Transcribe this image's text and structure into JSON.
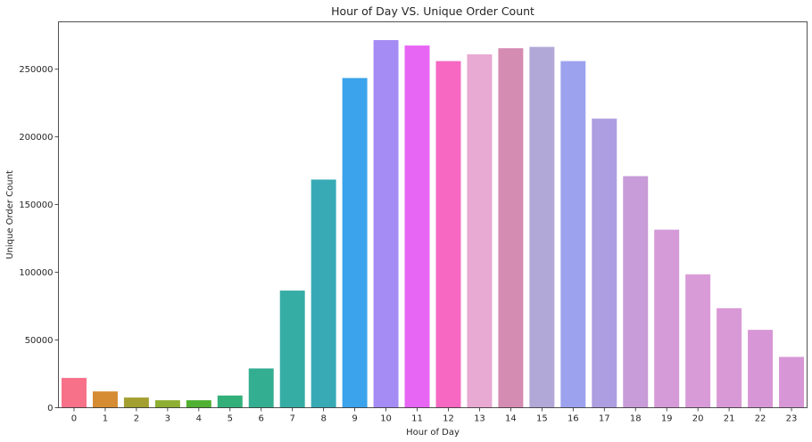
{
  "chart_data": {
    "type": "bar",
    "title": "Hour of Day VS. Unique Order Count",
    "xlabel": "Hour of Day",
    "ylabel": "Unique Order Count",
    "categories": [
      "0",
      "1",
      "2",
      "3",
      "4",
      "5",
      "6",
      "7",
      "8",
      "9",
      "10",
      "11",
      "12",
      "13",
      "14",
      "15",
      "16",
      "17",
      "18",
      "19",
      "20",
      "21",
      "22",
      "23"
    ],
    "values": [
      22000,
      12000,
      7500,
      5500,
      5500,
      9000,
      29000,
      86500,
      168500,
      243500,
      271500,
      267500,
      256000,
      261000,
      265500,
      266500,
      256000,
      213500,
      171000,
      131500,
      98500,
      73500,
      57500,
      37500
    ],
    "colors": [
      "#f77189",
      "#d58c32",
      "#a39f31",
      "#8eaf31",
      "#4fb031",
      "#33b07a",
      "#34ae91",
      "#36ada4",
      "#38aab6",
      "#3ba3ec",
      "#a48cf4",
      "#e866f4",
      "#f668c2",
      "#e8a9d3",
      "#d58cb2",
      "#b2a8d8",
      "#9da2ee",
      "#ac9ee0",
      "#c79cd8",
      "#d59ad8",
      "#d99bd8",
      "#d998d6",
      "#d797d6",
      "#d797d6"
    ],
    "ylim": [
      0,
      285000
    ],
    "yticks": [
      0,
      50000,
      100000,
      150000,
      200000,
      250000
    ],
    "grid": false
  }
}
